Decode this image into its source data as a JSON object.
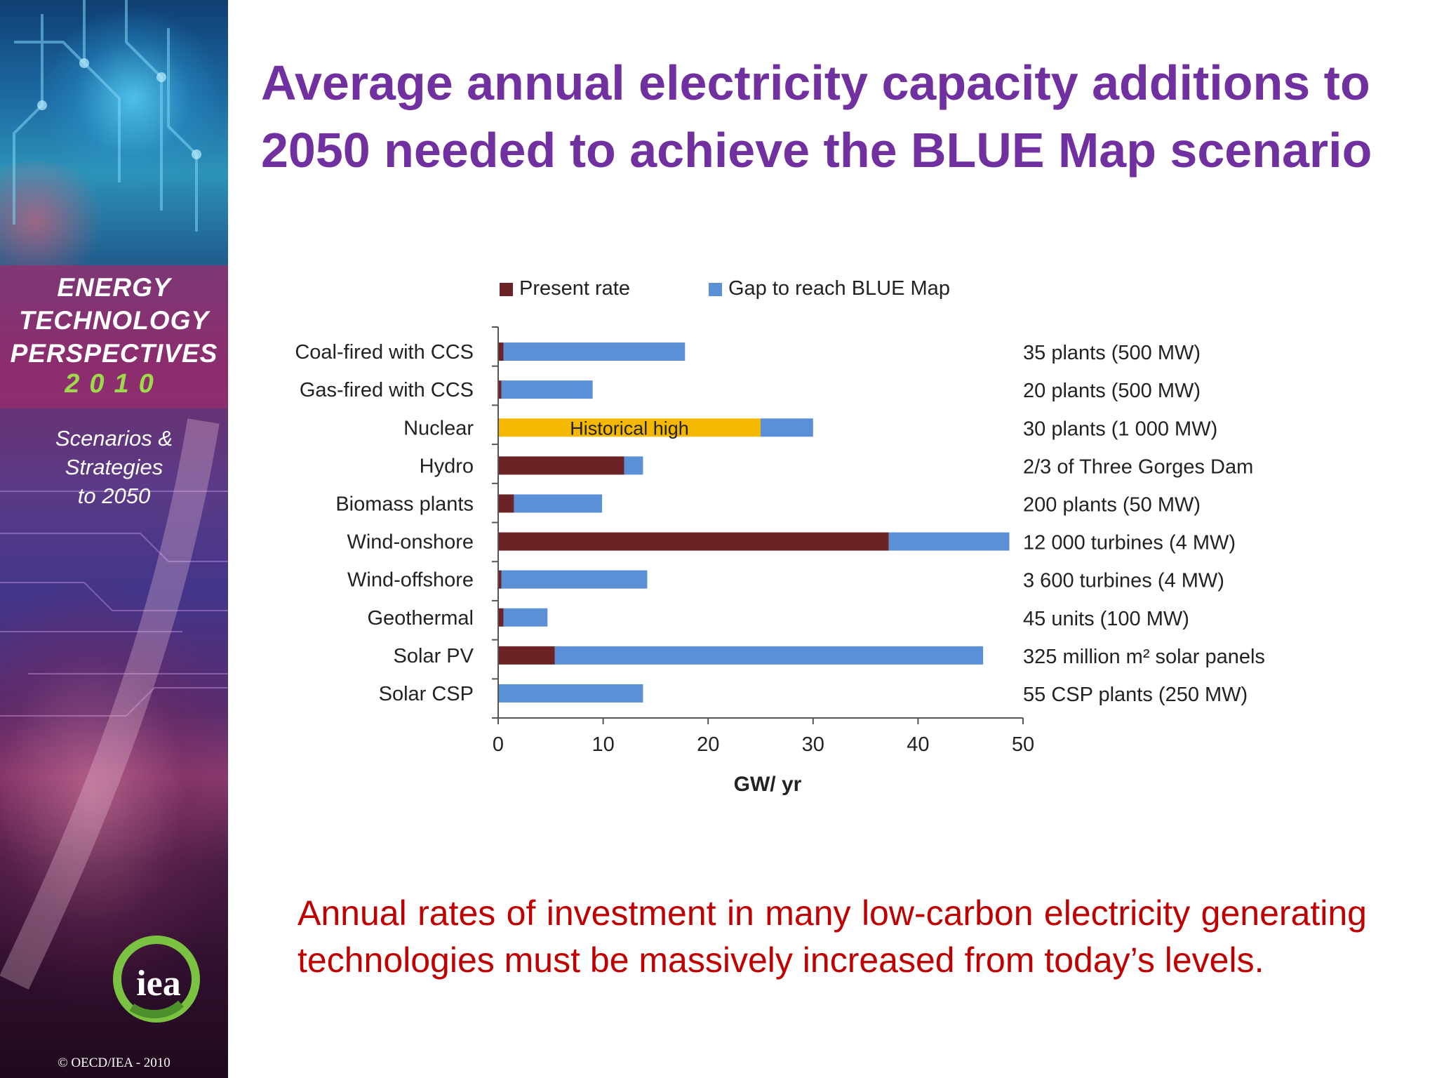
{
  "sidebar": {
    "title_lines": [
      "ENERGY",
      "TECHNOLOGY",
      "PERSPECTIVES"
    ],
    "year": "2010",
    "subtitle_lines": [
      "Scenarios &",
      "Strategies",
      "to 2050"
    ],
    "logo_text": "iea",
    "copyright": "© OECD/IEA - 2010"
  },
  "title": "Average annual electricity capacity additions to 2050 needed to achieve the BLUE Map scenario",
  "footer_text": "Annual rates of investment in many low-carbon electricity generating technologies must be massively increased from today’s levels.",
  "colors": {
    "title": "#7030a0",
    "present_rate": "#6b2326",
    "gap": "#5b8fd6",
    "historical_high": "#f5b800",
    "footer": "#c00000",
    "year_accent": "#9ed84b"
  },
  "chart_data": {
    "type": "bar",
    "orientation": "horizontal",
    "stacked": true,
    "categories": [
      "Coal-fired with CCS",
      "Gas-fired with CCS",
      "Nuclear",
      "Hydro",
      "Biomass plants",
      "Wind-onshore",
      "Wind-offshore",
      "Geothermal",
      "Solar PV",
      "Solar CSP"
    ],
    "series": [
      {
        "name": "Present rate",
        "values": [
          0.5,
          0.3,
          25,
          12,
          1.5,
          37.2,
          0.3,
          0.5,
          5.4,
          0
        ]
      },
      {
        "name": "Gap to reach BLUE Map",
        "values": [
          17.3,
          8.7,
          5,
          1.8,
          8.4,
          11.5,
          13.9,
          4.2,
          40.8,
          13.8
        ]
      }
    ],
    "annotation": {
      "text": "Historical high",
      "category": "Nuclear"
    },
    "right_labels": [
      "35 plants (500 MW)",
      "20 plants (500 MW)",
      "30 plants (1 000 MW)",
      "2/3 of Three Gorges Dam",
      "200 plants  (50 MW)",
      "12 000 turbines   (4 MW)",
      "3 600 turbines   (4 MW)",
      "45 units (100 MW)",
      "325 million m² solar panels",
      "55 CSP plants (250 MW)"
    ],
    "xlabel": "GW/ yr",
    "xlim": [
      0,
      50
    ],
    "xticks": [
      0,
      10,
      20,
      30,
      40,
      50
    ],
    "legend_position": "top",
    "grid": false
  }
}
